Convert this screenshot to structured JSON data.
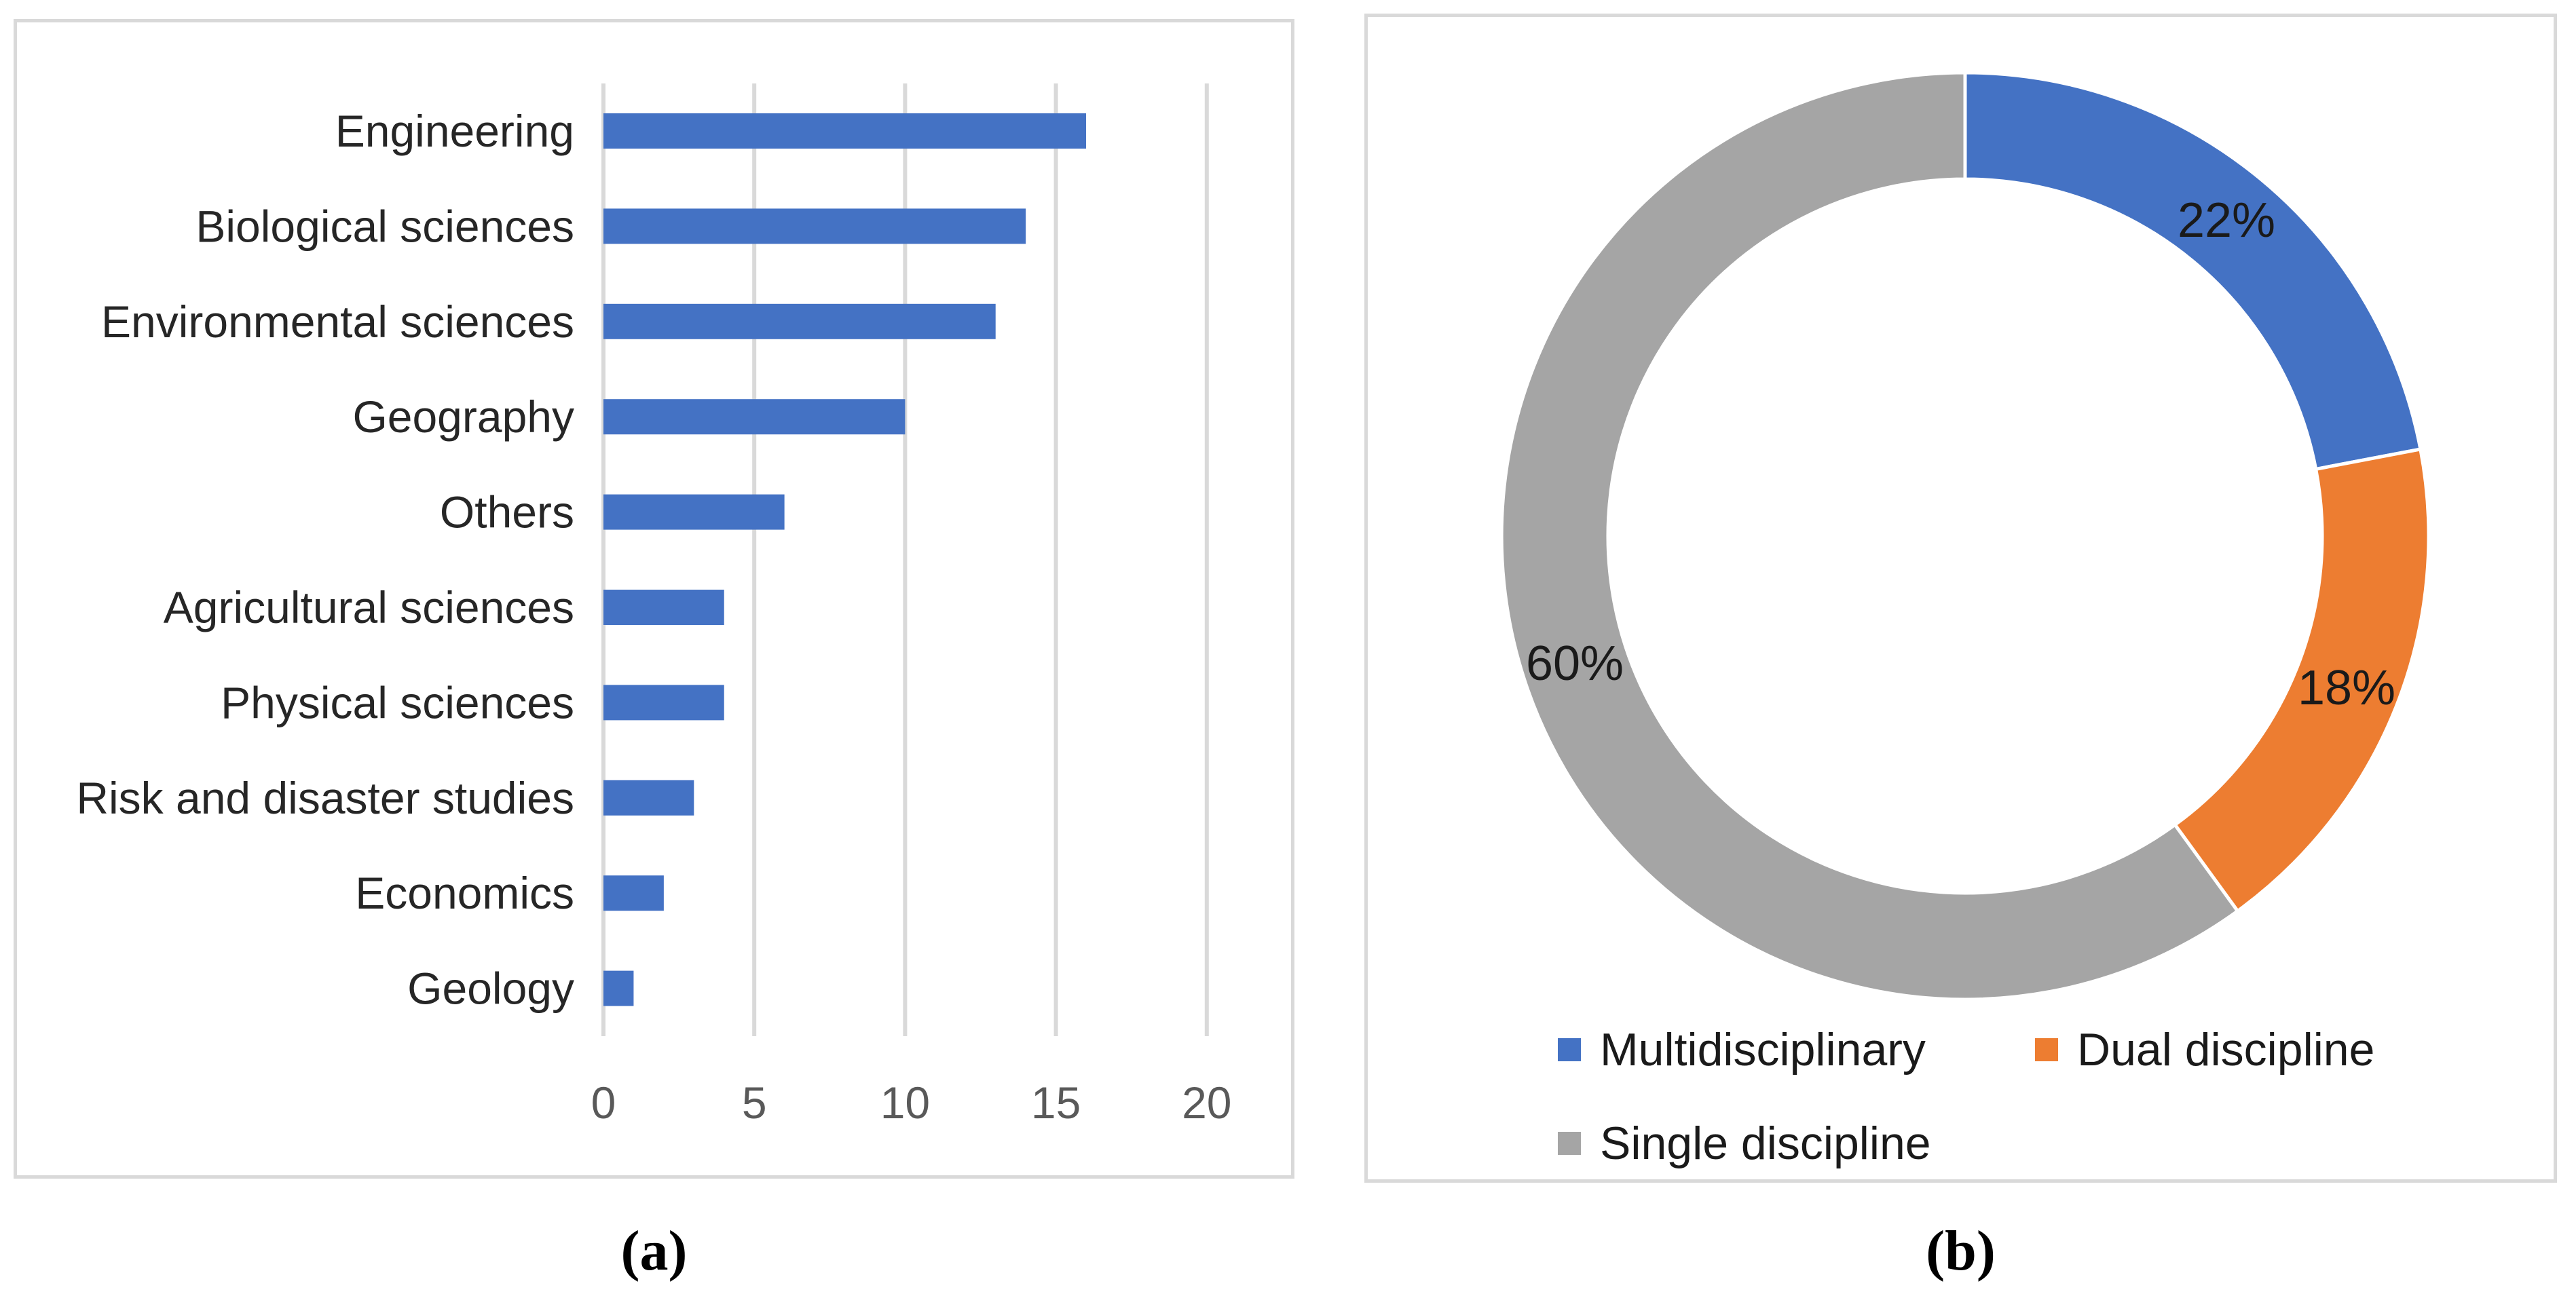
{
  "figure": {
    "caption_a": "(a)",
    "caption_b": "(b)"
  },
  "colors": {
    "bar_fill": "#4472C4",
    "gridline": "#D9D9D9",
    "panel_border": "#D9D9D9",
    "tick_text": "#595959",
    "category_text": "#262626",
    "data_label_text": "#1a1a1a"
  },
  "chart_data": [
    {
      "type": "bar",
      "orientation": "horizontal",
      "title": "",
      "categories": [
        "Engineering",
        "Biological sciences",
        "Environmental sciences",
        "Geography",
        "Others",
        "Agricultural sciences",
        "Physical sciences",
        "Risk and disaster studies",
        "Economics",
        "Geology"
      ],
      "values": [
        16,
        14,
        13,
        10,
        6,
        4,
        4,
        3,
        2,
        1
      ],
      "bar_color": "#4472C4",
      "xticks": [
        0,
        5,
        10,
        15,
        20
      ],
      "xlim": [
        0,
        20
      ],
      "xlabel": "",
      "ylabel": "",
      "grid": true,
      "legend_position": "none"
    },
    {
      "type": "donut",
      "title": "",
      "start_angle_deg": 0,
      "direction": "clockwise",
      "hole_ratio": 0.77,
      "legend_position": "bottom",
      "slices": [
        {
          "label": "Multidisciplinary",
          "value": 22,
          "pct_label": "22%",
          "color": "#4472C4"
        },
        {
          "label": "Dual discipline",
          "value": 18,
          "pct_label": "18%",
          "color": "#ED7D31"
        },
        {
          "label": "Single discipline",
          "value": 60,
          "pct_label": "60%",
          "color": "#A5A5A5"
        }
      ]
    }
  ]
}
